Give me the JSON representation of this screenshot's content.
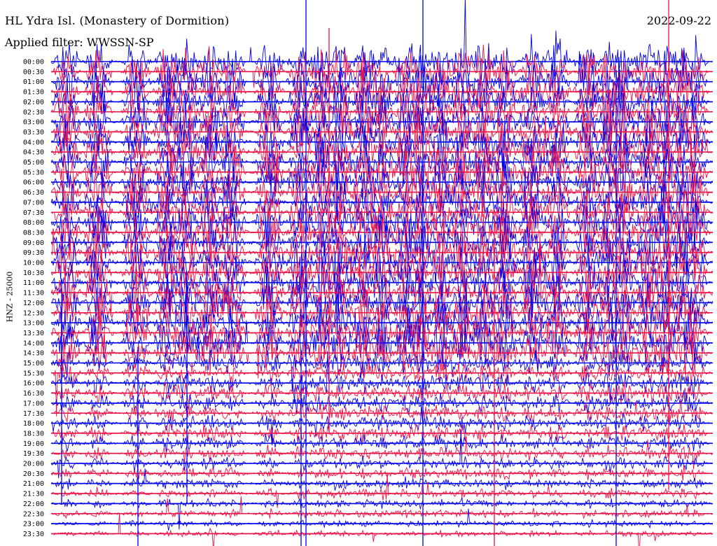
{
  "header": {
    "station": "HL Ydra Isl. (Monastery of Dormition)",
    "date": "2022-09-22",
    "filter": "Applied filter: WWSSN-SP",
    "channel": "HNZ - 25000"
  },
  "colors": {
    "trace_a": "#0000ee",
    "trace_b": "#ee1144",
    "text": "#000000"
  },
  "chart_data": {
    "type": "helicorder",
    "title": "HL Ydra Isl. (Monastery of Dormition)",
    "ylabel": "HNZ - 25000",
    "row_labels": [
      "00:00",
      "00:30",
      "01:00",
      "01:30",
      "02:00",
      "02:30",
      "03:00",
      "03:30",
      "04:00",
      "04:30",
      "05:00",
      "05:30",
      "06:00",
      "06:30",
      "07:00",
      "07:30",
      "08:00",
      "08:30",
      "09:00",
      "09:30",
      "10:00",
      "10:30",
      "11:00",
      "11:30",
      "12:00",
      "12:30",
      "13:00",
      "13:30",
      "14:00",
      "14:30",
      "15:00",
      "15:30",
      "16:00",
      "16:30",
      "17:00",
      "17:30",
      "18:00",
      "18:30",
      "19:00",
      "19:30",
      "20:00",
      "20:30",
      "21:00",
      "21:30",
      "22:00",
      "22:30",
      "23:00",
      "23:30"
    ],
    "trace_colors": [
      "blue",
      "red"
    ],
    "row_duration_minutes": 30,
    "grid": false
  }
}
